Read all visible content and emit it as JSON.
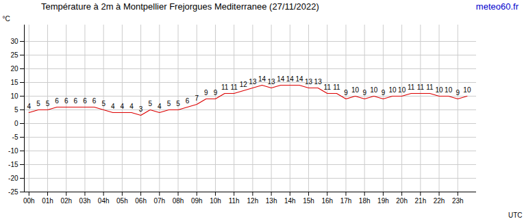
{
  "chart_data": {
    "type": "line",
    "title": "Température à 2m à Montpellier Frejorgues Mediterranee (27/11/2022)",
    "annotations": [
      "meteo60.fr"
    ],
    "y_label": "°C",
    "x_label": "UTC",
    "x": [
      0,
      0.5,
      1,
      1.5,
      2,
      2.5,
      3,
      3.5,
      4,
      4.5,
      5,
      5.5,
      6,
      6.5,
      7,
      7.5,
      8,
      8.5,
      9,
      9.5,
      10,
      10.5,
      11,
      11.5,
      12,
      12.5,
      13,
      13.5,
      14,
      14.5,
      15,
      15.5,
      16,
      16.5,
      17,
      17.5,
      18,
      18.5,
      19,
      19.5,
      20,
      20.5,
      21,
      21.5,
      22,
      22.5,
      23,
      23.5
    ],
    "values": [
      4,
      5,
      5,
      6,
      6,
      6,
      6,
      6,
      5,
      4,
      4,
      4,
      3,
      5,
      4,
      5,
      5,
      6,
      7,
      9,
      9,
      11,
      11,
      12,
      13,
      14,
      13,
      14,
      14,
      14,
      13,
      13,
      11,
      11,
      9,
      10,
      9,
      10,
      9,
      10,
      10,
      11,
      11,
      11,
      10,
      10,
      9,
      10
    ],
    "color": "#dd0000",
    "xlim": [
      -0.25,
      24
    ],
    "xticks": [
      {
        "value": 0,
        "label": "00h"
      },
      {
        "value": 1,
        "label": "01h"
      },
      {
        "value": 2,
        "label": "02h"
      },
      {
        "value": 3,
        "label": "03h"
      },
      {
        "value": 4,
        "label": "04h"
      },
      {
        "value": 5,
        "label": "05h"
      },
      {
        "value": 6,
        "label": "06h"
      },
      {
        "value": 7,
        "label": "07h"
      },
      {
        "value": 8,
        "label": "08h"
      },
      {
        "value": 9,
        "label": "09h"
      },
      {
        "value": 10,
        "label": "10h"
      },
      {
        "value": 11,
        "label": "11h"
      },
      {
        "value": 12,
        "label": "12h"
      },
      {
        "value": 13,
        "label": "13h"
      },
      {
        "value": 14,
        "label": "14h"
      },
      {
        "value": 15,
        "label": "15h"
      },
      {
        "value": 16,
        "label": "16h"
      },
      {
        "value": 17,
        "label": "17h"
      },
      {
        "value": 18,
        "label": "18h"
      },
      {
        "value": 19,
        "label": "19h"
      },
      {
        "value": 20,
        "label": "20h"
      },
      {
        "value": 21,
        "label": "21h"
      },
      {
        "value": 22,
        "label": "22h"
      },
      {
        "value": 23,
        "label": "23h"
      }
    ],
    "ylim": [
      -25,
      36
    ],
    "yticks": [
      30,
      25,
      20,
      15,
      10,
      5,
      0,
      -5,
      -10,
      -15,
      -20,
      -25
    ],
    "grid": true,
    "data_labels": true
  }
}
